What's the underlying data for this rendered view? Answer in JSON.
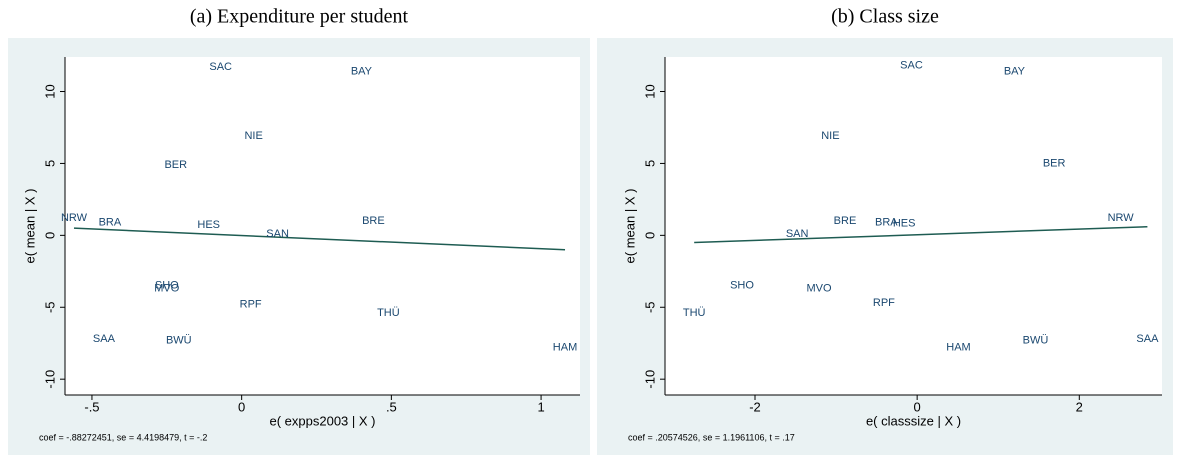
{
  "chart_data": [
    {
      "type": "scatter",
      "title": "(a) Expenditure per student",
      "x_label": "e( expps2003 | X )",
      "y_label": "e( mean | X )",
      "note": "coef = -.88272451, se = 4.4198479, t = -.2",
      "labels": [
        "SAC",
        "BAY",
        "NIE",
        "BER",
        "NRW",
        "BRA",
        "HES",
        "SAN",
        "BRE",
        "SHO",
        "MVO",
        "RPF",
        "THÜ",
        "SAA",
        "BWÜ",
        "HAM"
      ],
      "x": [
        -0.07,
        0.4,
        0.04,
        -0.22,
        -0.56,
        -0.44,
        -0.11,
        0.12,
        0.44,
        -0.25,
        -0.25,
        0.03,
        0.49,
        -0.46,
        -0.21,
        1.08
      ],
      "y": [
        11.7,
        11.4,
        6.9,
        4.9,
        1.2,
        0.9,
        0.7,
        0.1,
        1.0,
        -3.5,
        -3.7,
        -4.8,
        -5.4,
        -7.2,
        -7.3,
        -7.8
      ],
      "fit": {
        "x": [
          -0.56,
          1.08
        ],
        "y": [
          0.5,
          -1.0
        ],
        "color": "#1e5c52"
      },
      "color": "#1a476f",
      "xlim": [
        -0.59,
        1.13
      ],
      "ylim": [
        -11.1,
        12.4
      ],
      "xticks": [
        {
          "value": -0.5,
          "label": "-.5"
        },
        0,
        {
          "value": 0.5,
          "label": ".5"
        },
        1
      ],
      "yticks": [
        -10,
        -5,
        0,
        5,
        10
      ]
    },
    {
      "type": "scatter",
      "title": "(b) Class size",
      "x_label": "e( classsize | X )",
      "y_label": "e( mean | X )",
      "note": "coef = .20574526, se = 1.1961106, t = .17",
      "labels": [
        "SAC",
        "BAY",
        "NIE",
        "BER",
        "NRW",
        "BRE",
        "BRA",
        "HES",
        "SAN",
        "SHO",
        "MVO",
        "RPF",
        "THÜ",
        "HAM",
        "BWÜ",
        "SAA"
      ],
      "x": [
        -0.07,
        1.2,
        -1.07,
        1.69,
        2.51,
        -0.89,
        -0.38,
        -0.16,
        -1.48,
        -2.16,
        -1.21,
        -0.41,
        -2.75,
        0.51,
        1.46,
        2.84
      ],
      "y": [
        11.8,
        11.4,
        6.9,
        5.0,
        1.2,
        1.0,
        0.9,
        0.8,
        0.1,
        -3.5,
        -3.7,
        -4.7,
        -5.4,
        -7.8,
        -7.3,
        -7.2
      ],
      "fit": {
        "x": [
          -2.75,
          2.84
        ],
        "y": [
          -0.5,
          0.6
        ],
        "color": "#1e5c52"
      },
      "color": "#1a476f",
      "xlim": [
        -3.11,
        3.02
      ],
      "ylim": [
        -11.1,
        12.4
      ],
      "xticks": [
        -2,
        0,
        2
      ],
      "yticks": [
        -10,
        -5,
        0,
        5,
        10
      ]
    }
  ]
}
